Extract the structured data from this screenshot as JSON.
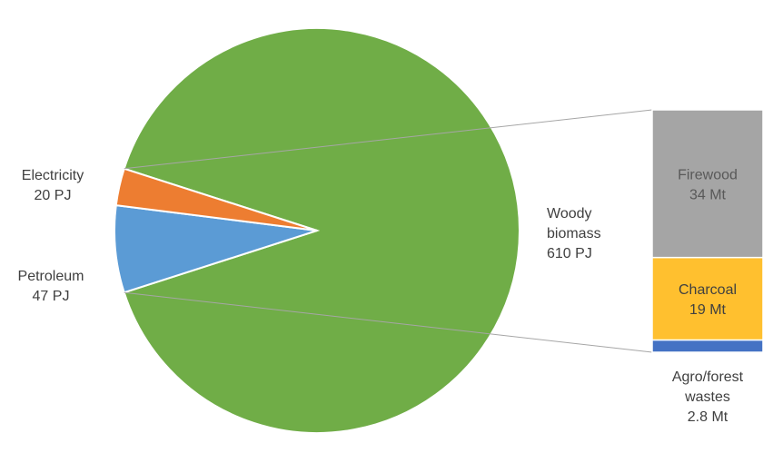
{
  "chart_data": [
    {
      "type": "pie",
      "slices": [
        {
          "name": "Woody biomass",
          "label_lines": [
            "Woody",
            "biomass",
            "610 PJ"
          ],
          "value": 610,
          "unit": "PJ",
          "color": "#70AD47"
        },
        {
          "name": "Petroleum",
          "label_lines": [
            "Petroleum",
            "47 PJ"
          ],
          "value": 47,
          "unit": "PJ",
          "color": "#5B9BD5"
        },
        {
          "name": "Electricity",
          "label_lines": [
            "Electricity",
            "20 PJ"
          ],
          "value": 20,
          "unit": "PJ",
          "color": "#ED7D31"
        }
      ]
    },
    {
      "type": "bar",
      "stacked": true,
      "breakdown_of": "Woody biomass",
      "segments": [
        {
          "name": "Firewood",
          "label_lines": [
            "Firewood",
            "34 Mt"
          ],
          "value": 34,
          "unit": "Mt",
          "color": "#A5A5A5",
          "label_color": "#595959"
        },
        {
          "name": "Charcoal",
          "label_lines": [
            "Charcoal",
            "19 Mt"
          ],
          "value": 19,
          "unit": "Mt",
          "color": "#FFC02F",
          "label_color": "#404040"
        },
        {
          "name": "Agro/forest wastes",
          "label_lines": [
            "Agro/forest",
            "wastes",
            "2.8 Mt"
          ],
          "value": 2.8,
          "unit": "Mt",
          "color": "#4472C4",
          "label_color": "#404040"
        }
      ]
    }
  ],
  "colors": {
    "label_text": "#404040",
    "connector": "#A6A6A6"
  }
}
